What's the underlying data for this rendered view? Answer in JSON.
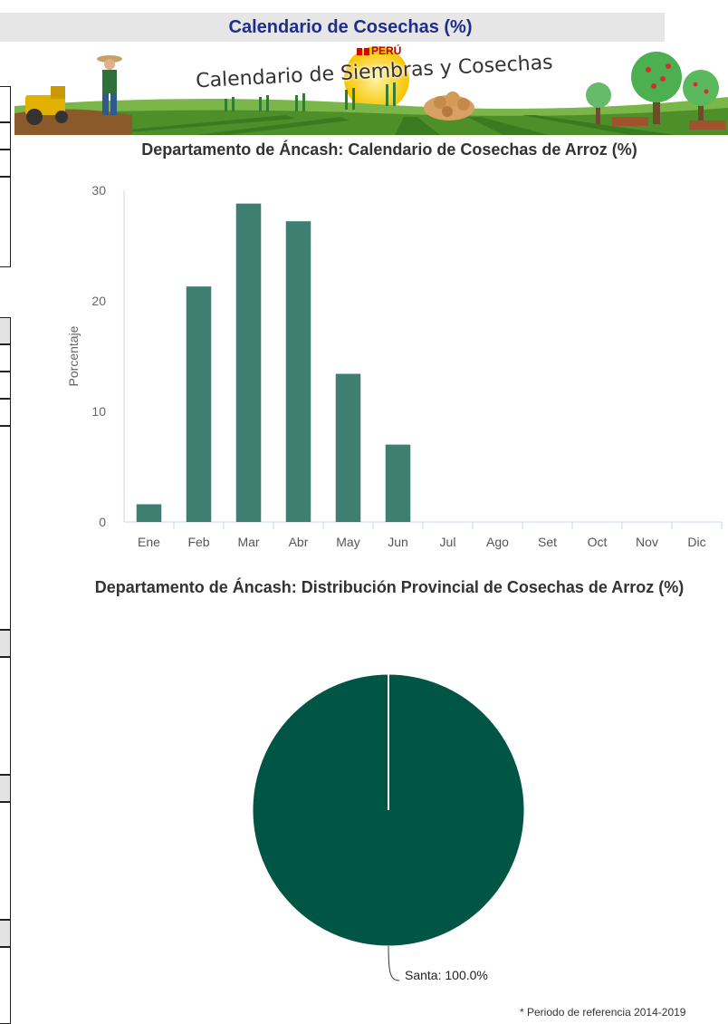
{
  "header": {
    "title": "Calendario de  Cosechas (%)"
  },
  "banner": {
    "peru_label": "PERÚ",
    "title": "Calendario de Siembras y Cosechas"
  },
  "colors": {
    "bar": "#3f7f72",
    "pie": "#005544",
    "title_text": "#1f2d8c"
  },
  "chart_data": [
    {
      "type": "bar",
      "title": "Departamento de Áncash: Calendario de Cosechas de Arroz (%)",
      "ylabel": "Porcentaje",
      "xlabel": "",
      "categories": [
        "Ene",
        "Feb",
        "Mar",
        "Abr",
        "May",
        "Jun",
        "Jul",
        "Ago",
        "Set",
        "Oct",
        "Nov",
        "Dic"
      ],
      "values": [
        1.6,
        21.3,
        28.8,
        27.2,
        13.4,
        7.0,
        0,
        0,
        0,
        0,
        0,
        0
      ],
      "ylim": [
        0,
        30
      ],
      "yticks": [
        0,
        10,
        20,
        30
      ],
      "grid": false,
      "legend": "none"
    },
    {
      "type": "pie",
      "title": "Departamento de Áncash: Distribución Provincial de Cosechas de Arroz (%)",
      "labels": [
        "Santa"
      ],
      "values": [
        100.0
      ],
      "data_labels": [
        "Santa: 100.0%"
      ]
    }
  ],
  "footnote": "* Periodo de referencia 2014-2019"
}
